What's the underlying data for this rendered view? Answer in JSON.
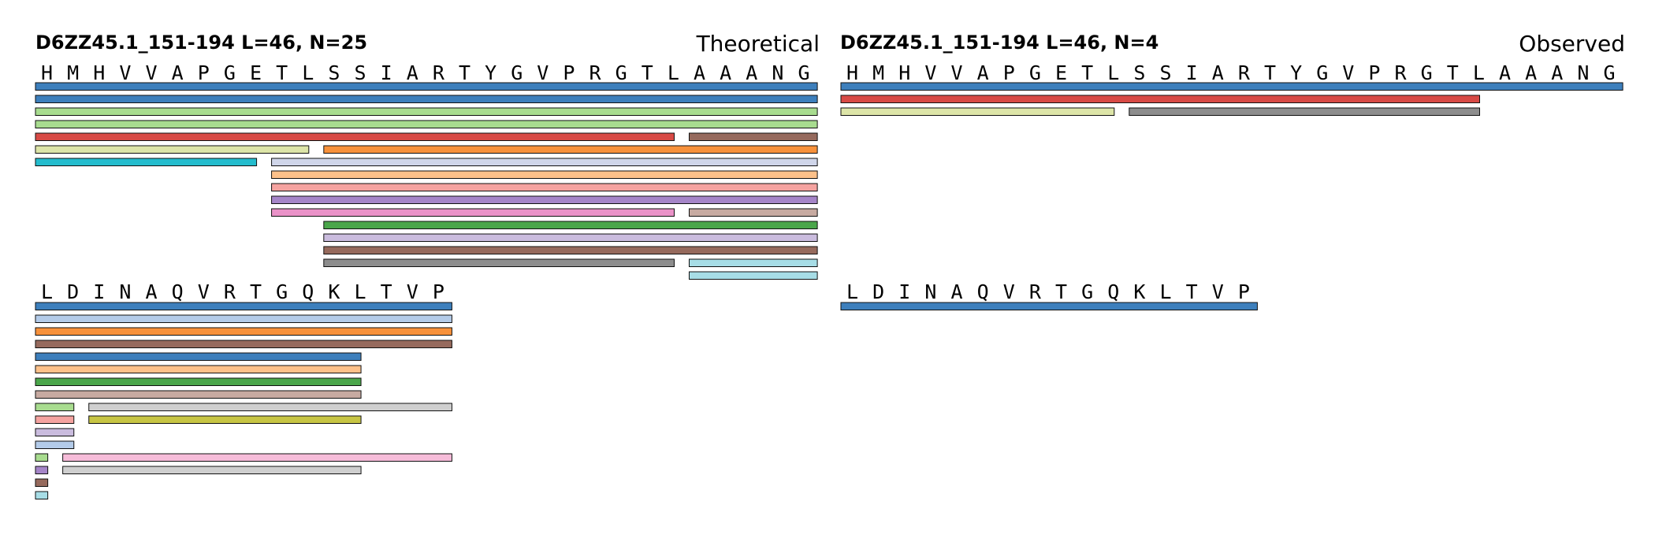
{
  "panels": [
    {
      "id": "theoretical",
      "title": "D6ZZ45.1_151-194  L=46, N=25",
      "label": "Theoretical",
      "rows": [
        {
          "sequence": "HMHVVAPGETLSSIARTYGVPRGTLAAANG",
          "peptides": [
            {
              "start": 1,
              "end": 30,
              "color": "#3d7fbc"
            },
            {
              "start": 1,
              "end": 30,
              "color": "#3d7fbc"
            },
            {
              "start": 1,
              "end": 30,
              "color": "#a8dc8f"
            },
            {
              "start": 1,
              "end": 30,
              "color": "#a8dc8f"
            },
            {
              "start": 1,
              "end": 25,
              "color": "#d84a45"
            },
            {
              "start": 26,
              "end": 30,
              "color": "#966a5d"
            },
            {
              "start": 1,
              "end": 11,
              "color": "#dde5a8"
            },
            {
              "start": 12,
              "end": 30,
              "color": "#f7913b"
            },
            {
              "start": 1,
              "end": 9,
              "color": "#24bccd"
            },
            {
              "start": 10,
              "end": 30,
              "color": "#d0d6ea"
            },
            {
              "start": 10,
              "end": 30,
              "color": "#fdc18a"
            },
            {
              "start": 10,
              "end": 30,
              "color": "#f5a3a0"
            },
            {
              "start": 10,
              "end": 30,
              "color": "#a585c8"
            },
            {
              "start": 10,
              "end": 25,
              "color": "#ea92c8"
            },
            {
              "start": 26,
              "end": 30,
              "color": "#c7aaa1"
            },
            {
              "start": 12,
              "end": 30,
              "color": "#4aa64a"
            },
            {
              "start": 12,
              "end": 30,
              "color": "#cabcde"
            },
            {
              "start": 12,
              "end": 30,
              "color": "#966a5d"
            },
            {
              "start": 12,
              "end": 25,
              "color": "#8d8d8d"
            },
            {
              "start": 26,
              "end": 30,
              "color": "#a7dde6"
            },
            {
              "start": 26,
              "end": 30,
              "color": "#a7dde6"
            }
          ]
        },
        {
          "sequence": "LDINAQVRTGQKLTVP",
          "peptides": [
            {
              "start": 1,
              "end": 16,
              "color": "#3d7fbc"
            },
            {
              "start": 1,
              "end": 16,
              "color": "#b3cbe9"
            },
            {
              "start": 1,
              "end": 16,
              "color": "#f7913b"
            },
            {
              "start": 1,
              "end": 16,
              "color": "#966a5d"
            },
            {
              "start": 1,
              "end": 13,
              "color": "#3d7fbc"
            },
            {
              "start": 1,
              "end": 13,
              "color": "#fdc18a"
            },
            {
              "start": 1,
              "end": 13,
              "color": "#4aa64a"
            },
            {
              "start": 1,
              "end": 13,
              "color": "#c7aaa1"
            },
            {
              "start": 1,
              "end": 2,
              "color": "#a8dc8f"
            },
            {
              "start": 3,
              "end": 16,
              "color": "#cfcfcf"
            },
            {
              "start": 1,
              "end": 2,
              "color": "#f5a3a0"
            },
            {
              "start": 3,
              "end": 13,
              "color": "#c7c544"
            },
            {
              "start": 1,
              "end": 2,
              "color": "#cabcde"
            },
            {
              "start": 1,
              "end": 2,
              "color": "#b3cbe9"
            },
            {
              "start": 1,
              "end": 1,
              "color": "#a8dc8f"
            },
            {
              "start": 2,
              "end": 16,
              "color": "#f6bcd9"
            },
            {
              "start": 1,
              "end": 1,
              "color": "#a585c8"
            },
            {
              "start": 2,
              "end": 13,
              "color": "#cfcfcf"
            },
            {
              "start": 1,
              "end": 1,
              "color": "#966a5d"
            },
            {
              "start": 1,
              "end": 1,
              "color": "#a7dde6"
            }
          ]
        }
      ]
    },
    {
      "id": "observed",
      "title": "D6ZZ45.1_151-194  L=46, N=4",
      "label": "Observed",
      "rows": [
        {
          "sequence": "HMHVVAPGETLSSIARTYGVPRGTLAAANG",
          "peptides": [
            {
              "start": 1,
              "end": 30,
              "color": "#3d7fbc"
            },
            {
              "start": 1,
              "end": 25,
              "color": "#d84a45"
            },
            {
              "start": 1,
              "end": 11,
              "color": "#dde5a8"
            },
            {
              "start": 12,
              "end": 25,
              "color": "#8d8d8d"
            }
          ]
        },
        {
          "sequence": "LDINAQVRTGQKLTVP",
          "peptides": [
            {
              "start": 1,
              "end": 16,
              "color": "#3d7fbc"
            }
          ]
        }
      ]
    }
  ]
}
